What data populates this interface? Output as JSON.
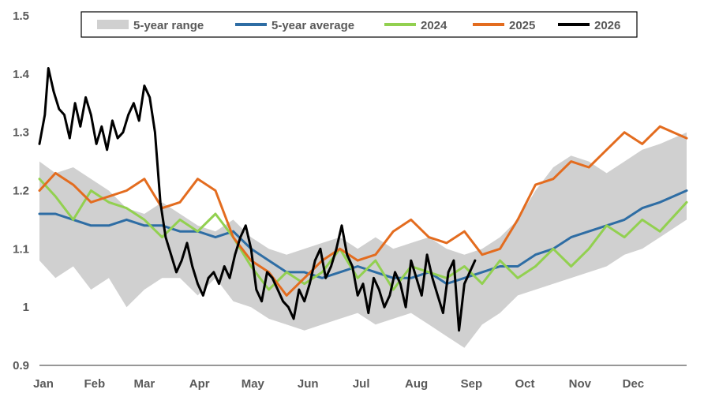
{
  "chart_data": {
    "type": "line",
    "title": "",
    "xlabel": "",
    "ylabel": "",
    "ylim": [
      0.9,
      1.5
    ],
    "yticks": [
      "0.9",
      "1",
      "1.1",
      "1.2",
      "1.3",
      "1.4",
      "1.5"
    ],
    "x_categories": [
      "Jan",
      "Feb",
      "Mar",
      "Apr",
      "May",
      "Jun",
      "Jul",
      "Aug",
      "Sep",
      "Oct",
      "Nov",
      "Dec"
    ],
    "x_unit": "day of year",
    "grid": false,
    "legend_position": "top",
    "legend": [
      "5-year range",
      "5-year average",
      "2024",
      "2025",
      "2026"
    ],
    "colors": {
      "range": "#d0d0d0",
      "average": "#2e6da4",
      "y2024": "#92d050",
      "y2025": "#e36c1f",
      "y2026": "#000000",
      "axis": "#595959"
    },
    "series": [
      {
        "name": "5-year range",
        "kind": "band",
        "x": [
          1,
          10,
          20,
          30,
          40,
          50,
          60,
          70,
          80,
          90,
          100,
          110,
          120,
          130,
          140,
          150,
          160,
          170,
          180,
          190,
          200,
          210,
          220,
          230,
          240,
          250,
          260,
          270,
          280,
          290,
          300,
          310,
          320,
          330,
          340,
          350,
          365
        ],
        "low": [
          1.08,
          1.05,
          1.07,
          1.03,
          1.05,
          1.0,
          1.03,
          1.05,
          1.05,
          1.02,
          1.05,
          1.01,
          1.0,
          0.98,
          0.97,
          0.96,
          0.97,
          0.98,
          0.99,
          0.97,
          0.98,
          0.99,
          0.97,
          0.95,
          0.93,
          0.97,
          0.99,
          1.02,
          1.03,
          1.04,
          1.05,
          1.06,
          1.07,
          1.09,
          1.1,
          1.12,
          1.15
        ],
        "high": [
          1.25,
          1.23,
          1.24,
          1.22,
          1.2,
          1.17,
          1.16,
          1.18,
          1.16,
          1.14,
          1.13,
          1.15,
          1.12,
          1.1,
          1.09,
          1.1,
          1.11,
          1.12,
          1.1,
          1.12,
          1.1,
          1.11,
          1.12,
          1.1,
          1.09,
          1.1,
          1.12,
          1.15,
          1.2,
          1.24,
          1.26,
          1.25,
          1.23,
          1.25,
          1.27,
          1.28,
          1.3
        ]
      },
      {
        "name": "5-year average",
        "kind": "line",
        "x": [
          1,
          10,
          20,
          30,
          40,
          50,
          60,
          70,
          80,
          90,
          100,
          110,
          120,
          130,
          140,
          150,
          160,
          170,
          180,
          190,
          200,
          210,
          220,
          230,
          240,
          250,
          260,
          270,
          280,
          290,
          300,
          310,
          320,
          330,
          340,
          350,
          365
        ],
        "y": [
          1.16,
          1.16,
          1.15,
          1.14,
          1.14,
          1.15,
          1.14,
          1.14,
          1.13,
          1.13,
          1.12,
          1.13,
          1.1,
          1.08,
          1.06,
          1.06,
          1.05,
          1.06,
          1.07,
          1.06,
          1.05,
          1.05,
          1.06,
          1.04,
          1.05,
          1.06,
          1.07,
          1.07,
          1.09,
          1.1,
          1.12,
          1.13,
          1.14,
          1.15,
          1.17,
          1.18,
          1.2
        ]
      },
      {
        "name": "2024",
        "kind": "line",
        "x": [
          1,
          10,
          20,
          30,
          40,
          50,
          60,
          70,
          80,
          90,
          100,
          110,
          120,
          130,
          140,
          150,
          160,
          170,
          180,
          190,
          200,
          210,
          220,
          230,
          240,
          250,
          260,
          270,
          280,
          290,
          300,
          310,
          320,
          330,
          340,
          350,
          365
        ],
        "y": [
          1.22,
          1.19,
          1.15,
          1.2,
          1.18,
          1.17,
          1.15,
          1.12,
          1.15,
          1.13,
          1.16,
          1.12,
          1.07,
          1.03,
          1.06,
          1.04,
          1.06,
          1.1,
          1.05,
          1.08,
          1.03,
          1.07,
          1.06,
          1.05,
          1.07,
          1.04,
          1.08,
          1.05,
          1.07,
          1.1,
          1.07,
          1.1,
          1.14,
          1.12,
          1.15,
          1.13,
          1.18
        ]
      },
      {
        "name": "2025",
        "kind": "line",
        "x": [
          1,
          10,
          20,
          30,
          40,
          50,
          60,
          70,
          80,
          90,
          100,
          110,
          120,
          130,
          140,
          150,
          160,
          170,
          180,
          190,
          200,
          210,
          220,
          230,
          240,
          250,
          260,
          270,
          280,
          290,
          300,
          310,
          320,
          330,
          340,
          350,
          365
        ],
        "y": [
          1.2,
          1.23,
          1.21,
          1.18,
          1.19,
          1.2,
          1.22,
          1.17,
          1.18,
          1.22,
          1.2,
          1.12,
          1.08,
          1.06,
          1.02,
          1.05,
          1.08,
          1.1,
          1.08,
          1.09,
          1.13,
          1.15,
          1.12,
          1.11,
          1.13,
          1.09,
          1.1,
          1.15,
          1.21,
          1.22,
          1.25,
          1.24,
          1.27,
          1.3,
          1.28,
          1.31,
          1.29
        ]
      },
      {
        "name": "2026",
        "kind": "line",
        "x": [
          1,
          4,
          6,
          9,
          12,
          15,
          18,
          21,
          24,
          27,
          30,
          33,
          36,
          39,
          42,
          45,
          48,
          51,
          54,
          57,
          60,
          63,
          66,
          69,
          72,
          75,
          78,
          81,
          84,
          87,
          90,
          93,
          96,
          99,
          102,
          105,
          108,
          111,
          114,
          117,
          120,
          123,
          126,
          129,
          132,
          135,
          138,
          141,
          144,
          147,
          150,
          153,
          156,
          159,
          162,
          165,
          168,
          171,
          174,
          177,
          180,
          183,
          186,
          189,
          192,
          195,
          198,
          201,
          204,
          207,
          210,
          213,
          216,
          219,
          222,
          225,
          228,
          231,
          234,
          237,
          240,
          243,
          246
        ],
        "y": [
          1.28,
          1.33,
          1.41,
          1.37,
          1.34,
          1.33,
          1.29,
          1.35,
          1.31,
          1.36,
          1.33,
          1.28,
          1.31,
          1.27,
          1.32,
          1.29,
          1.3,
          1.33,
          1.35,
          1.32,
          1.38,
          1.36,
          1.3,
          1.18,
          1.12,
          1.09,
          1.06,
          1.08,
          1.11,
          1.07,
          1.04,
          1.02,
          1.05,
          1.06,
          1.04,
          1.07,
          1.05,
          1.09,
          1.12,
          1.14,
          1.1,
          1.03,
          1.01,
          1.06,
          1.05,
          1.03,
          1.01,
          1.0,
          0.98,
          1.03,
          1.01,
          1.04,
          1.08,
          1.1,
          1.05,
          1.07,
          1.1,
          1.14,
          1.09,
          1.07,
          1.02,
          1.04,
          0.99,
          1.05,
          1.03,
          1.0,
          1.02,
          1.06,
          1.04,
          1.0,
          1.08,
          1.05,
          1.02,
          1.09,
          1.05,
          1.02,
          0.99,
          1.06,
          1.08,
          0.96,
          1.04,
          1.06,
          1.08
        ]
      }
    ]
  }
}
